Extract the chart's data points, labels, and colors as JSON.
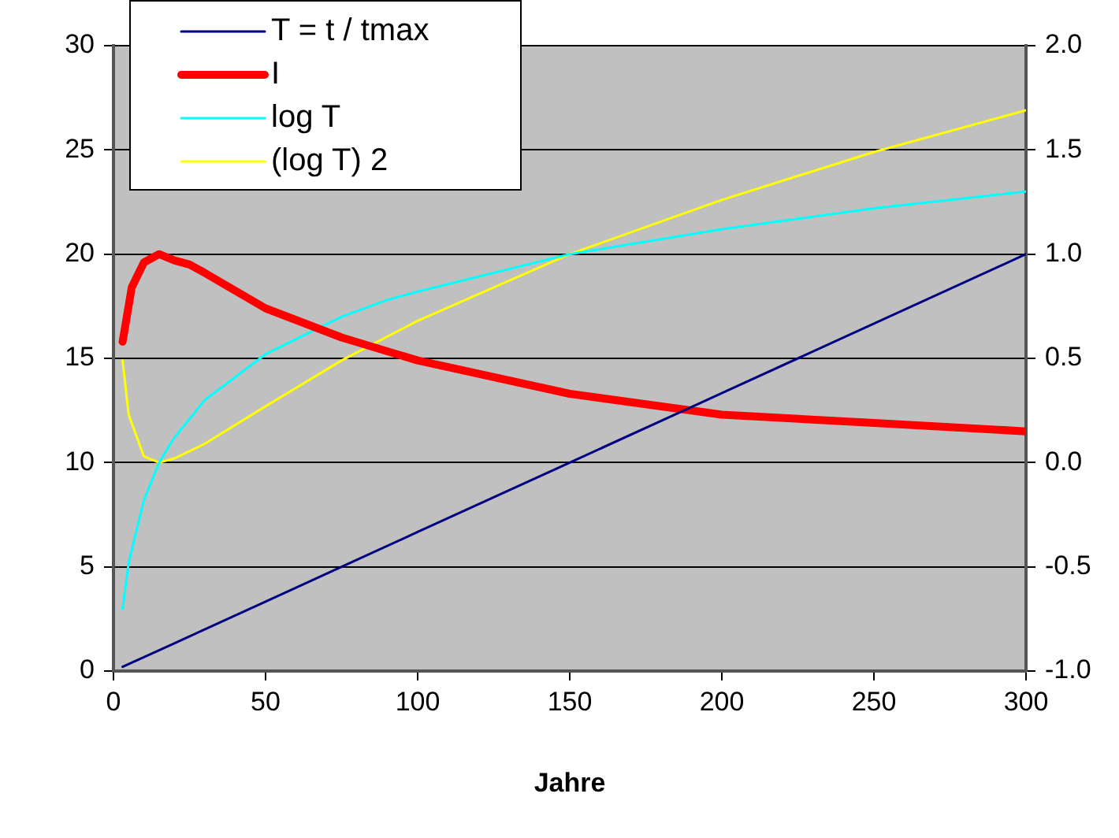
{
  "chart_data": {
    "type": "line",
    "xlabel": "Jahre",
    "series": [
      {
        "name": "T = t / tmax",
        "color": "#000080",
        "x": [
          3,
          10,
          20,
          30,
          50,
          75,
          100,
          150,
          200,
          250,
          300
        ],
        "values": [
          0.2,
          0.67,
          1.33,
          2,
          3.33,
          5,
          6.67,
          10,
          13.33,
          16.67,
          20
        ]
      },
      {
        "name": "I",
        "color": "#ff0000",
        "x": [
          3,
          6,
          10,
          15,
          20,
          25,
          30,
          50,
          75,
          100,
          150,
          200,
          250,
          300
        ],
        "values": [
          15.8,
          18.4,
          19.6,
          20,
          19.7,
          19.5,
          19.1,
          17.4,
          16.0,
          14.9,
          13.3,
          12.3,
          11.9,
          11.5
        ]
      },
      {
        "name": "log T",
        "color": "#00ffff",
        "axis": "y2",
        "x": [
          3,
          5,
          10,
          15,
          20,
          30,
          50,
          75,
          90,
          100,
          150,
          200,
          250,
          300
        ],
        "values": [
          -0.7,
          -0.48,
          -0.18,
          0,
          0.12,
          0.3,
          0.52,
          0.7,
          0.78,
          0.82,
          1.0,
          1.12,
          1.22,
          1.3
        ]
      },
      {
        "name": "(log T) 2",
        "color": "#ffff00",
        "axis": "y2",
        "x": [
          3,
          5,
          10,
          15,
          20,
          30,
          50,
          75,
          100,
          150,
          200,
          250,
          300
        ],
        "values": [
          0.49,
          0.23,
          0.03,
          0,
          0.02,
          0.09,
          0.27,
          0.49,
          0.68,
          1.0,
          1.26,
          1.49,
          1.69
        ]
      }
    ],
    "xlim": [
      0,
      300
    ],
    "xticks": [
      0,
      50,
      100,
      150,
      200,
      250,
      300
    ],
    "ylim": [
      0,
      30
    ],
    "yticks": [
      0,
      5,
      10,
      15,
      20,
      25,
      30
    ],
    "y2lim": [
      -1,
      2
    ],
    "y2ticks": [
      {
        "value": -1,
        "label": "-1.0"
      },
      {
        "value": -0.5,
        "label": "-0.5"
      },
      {
        "value": 0,
        "label": "0.0"
      },
      {
        "value": 0.5,
        "label": "0.5"
      },
      {
        "value": 1,
        "label": "1.0"
      },
      {
        "value": 1.5,
        "label": "1.5"
      },
      {
        "value": 2,
        "label": "2.0"
      }
    ],
    "grid": "y",
    "legend": "top left",
    "marker": "none",
    "line_style": "solid"
  }
}
